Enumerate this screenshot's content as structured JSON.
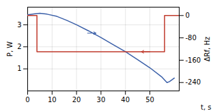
{
  "chart_data": {
    "type": "line",
    "xlabel": "t, s",
    "ylabel": "P, W",
    "y2label": "ΔRf, Hz",
    "xlim": [
      0,
      62
    ],
    "xticks": [
      0,
      10,
      20,
      30,
      40,
      50
    ],
    "ylim": [
      0,
      3.8
    ],
    "yticks": [
      1,
      2,
      3
    ],
    "y2lim": [
      -270,
      30
    ],
    "y2ticks": [
      0,
      -80,
      -160,
      -240
    ],
    "grid": true,
    "series": [
      {
        "color": "#3a5fa8",
        "x": [
          0,
          3,
          5,
          8,
          12,
          16,
          20,
          25,
          30,
          35,
          40,
          45,
          50,
          55,
          57,
          58,
          60
        ],
        "values": [
          3.45,
          3.5,
          3.52,
          3.48,
          3.38,
          3.2,
          3.0,
          2.72,
          2.42,
          2.1,
          1.78,
          1.42,
          1.05,
          0.62,
          0.38,
          0.42,
          0.58
        ]
      },
      {
        "color": "#c0392b",
        "axis": "y2",
        "x": [
          0,
          3.8,
          3.8,
          56.0,
          56.0,
          62
        ],
        "values": [
          0,
          0,
          -130,
          -130,
          0,
          0
        ]
      }
    ],
    "annotations": [
      {
        "type": "arrow",
        "x": [
          24.5,
          28.0
        ],
        "y": 2.62,
        "color": "#3a5fa8"
      },
      {
        "type": "arrow",
        "x": [
          50.0,
          46.5
        ],
        "y": -130,
        "axis": "y2",
        "color": "#c0392b"
      }
    ]
  }
}
